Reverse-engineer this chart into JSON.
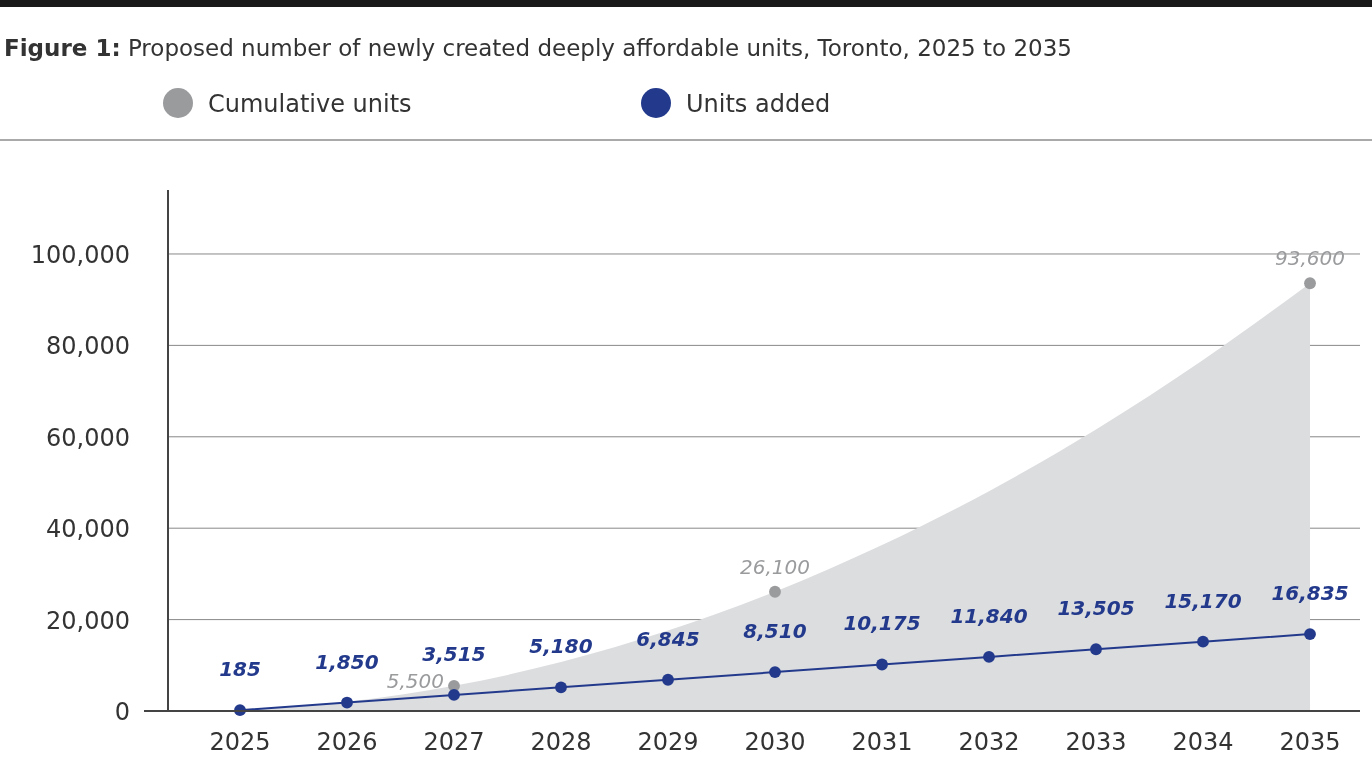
{
  "chart_data": {
    "type": "line",
    "title": "Figure 1: Proposed number of newly created deeply affordable units, Toronto, 2025 to 2035",
    "categories": [
      "2025",
      "2026",
      "2027",
      "2028",
      "2029",
      "2030",
      "2031",
      "2032",
      "2033",
      "2034",
      "2035"
    ],
    "series": [
      {
        "type": "area",
        "color": "#dcdddf",
        "values": [
          200,
          2000,
          5500,
          10700,
          17600,
          26100,
          36300,
          48100,
          61600,
          76800,
          93600
        ]
      },
      {
        "name": "Cumulative units",
        "type": "scatter",
        "marker": "circle",
        "color": "#9a9b9d",
        "values": [
          null,
          null,
          5500,
          null,
          null,
          26100,
          null,
          null,
          null,
          null,
          93600
        ],
        "value_labels": [
          null,
          null,
          "5,500",
          null,
          null,
          "26,100",
          null,
          null,
          null,
          null,
          "93,600"
        ]
      },
      {
        "name": "Units added",
        "marker": "circle",
        "color": "#233a8c",
        "values": [
          185,
          1850,
          3515,
          5180,
          6845,
          8510,
          10175,
          11840,
          13505,
          15170,
          16835
        ],
        "value_labels": [
          "185",
          "1,850",
          "3,515",
          "5,180",
          "6,845",
          "8,510",
          "10,175",
          "11,840",
          "13,505",
          "15,170",
          "16,835"
        ]
      }
    ],
    "ylim": [
      0,
      114000
    ],
    "yticks": [
      0,
      {
        "value": 20000,
        "label": "20,000"
      },
      {
        "value": 40000,
        "label": "40,000"
      },
      {
        "value": 60000,
        "label": "60,000"
      },
      {
        "value": 80000,
        "label": "80,000"
      },
      {
        "value": 100000,
        "label": "100,000"
      }
    ],
    "grid": "y",
    "legend": "top",
    "line_style": "solid"
  }
}
